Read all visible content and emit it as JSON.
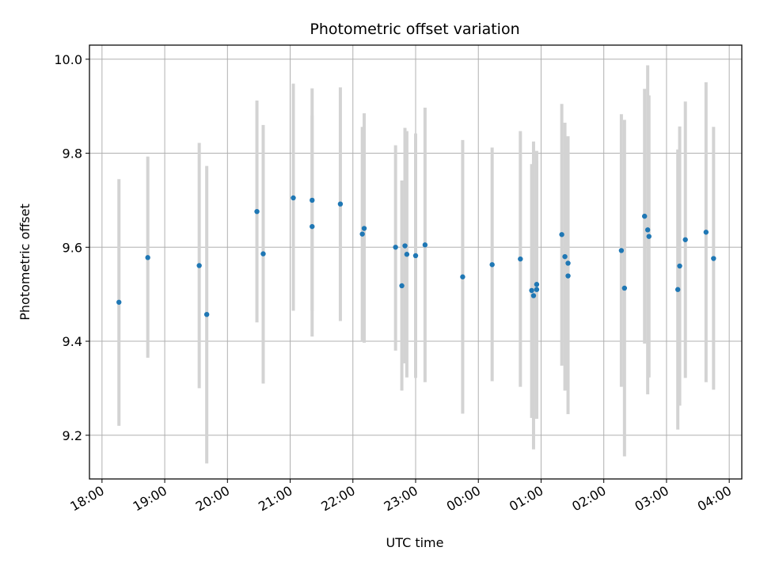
{
  "chart_data": {
    "type": "scatter",
    "title": "Photometric offset variation",
    "xlabel": "UTC time",
    "ylabel": "Photometric offset",
    "x_tick_labels": [
      "18:00",
      "19:00",
      "20:00",
      "21:00",
      "22:00",
      "23:00",
      "00:00",
      "01:00",
      "02:00",
      "03:00",
      "04:00"
    ],
    "x_ticks_hours": [
      0,
      1,
      2,
      3,
      4,
      5,
      6,
      7,
      8,
      9,
      10
    ],
    "xlim": [
      -0.2,
      10.2
    ],
    "y_ticks": [
      9.2,
      9.4,
      9.6,
      9.8,
      10.0
    ],
    "y_tick_labels": [
      "9.2",
      "9.4",
      "9.6",
      "9.8",
      "10.0"
    ],
    "ylim": [
      9.107,
      10.03
    ],
    "grid": true,
    "point_color": "#1f77b4",
    "errorbar_color": "#d3d3d3",
    "points": [
      {
        "x": 0.27,
        "y": 9.483,
        "lo": 9.22,
        "hi": 9.745
      },
      {
        "x": 0.73,
        "y": 9.578,
        "lo": 9.365,
        "hi": 9.793
      },
      {
        "x": 1.55,
        "y": 9.561,
        "lo": 9.3,
        "hi": 9.822
      },
      {
        "x": 1.67,
        "y": 9.457,
        "lo": 9.14,
        "hi": 9.773
      },
      {
        "x": 2.47,
        "y": 9.676,
        "lo": 9.44,
        "hi": 9.912
      },
      {
        "x": 2.57,
        "y": 9.586,
        "lo": 9.31,
        "hi": 9.86
      },
      {
        "x": 3.05,
        "y": 9.705,
        "lo": 9.465,
        "hi": 9.948
      },
      {
        "x": 3.35,
        "y": 9.7,
        "lo": 9.465,
        "hi": 9.938
      },
      {
        "x": 3.35,
        "y": 9.644,
        "lo": 9.41,
        "hi": 9.88
      },
      {
        "x": 3.8,
        "y": 9.692,
        "lo": 9.443,
        "hi": 9.94
      },
      {
        "x": 4.15,
        "y": 9.628,
        "lo": 9.4,
        "hi": 9.856
      },
      {
        "x": 4.18,
        "y": 9.64,
        "lo": 9.397,
        "hi": 9.885
      },
      {
        "x": 4.68,
        "y": 9.6,
        "lo": 9.38,
        "hi": 9.817
      },
      {
        "x": 4.78,
        "y": 9.518,
        "lo": 9.295,
        "hi": 9.742
      },
      {
        "x": 4.83,
        "y": 9.603,
        "lo": 9.353,
        "hi": 9.854
      },
      {
        "x": 4.86,
        "y": 9.585,
        "lo": 9.323,
        "hi": 9.847
      },
      {
        "x": 5.0,
        "y": 9.582,
        "lo": 9.322,
        "hi": 9.842
      },
      {
        "x": 5.15,
        "y": 9.605,
        "lo": 9.313,
        "hi": 9.897
      },
      {
        "x": 5.75,
        "y": 9.537,
        "lo": 9.246,
        "hi": 9.828
      },
      {
        "x": 6.22,
        "y": 9.563,
        "lo": 9.315,
        "hi": 9.812
      },
      {
        "x": 6.67,
        "y": 9.575,
        "lo": 9.303,
        "hi": 9.847
      },
      {
        "x": 6.85,
        "y": 9.508,
        "lo": 9.237,
        "hi": 9.777
      },
      {
        "x": 6.88,
        "y": 9.497,
        "lo": 9.17,
        "hi": 9.825
      },
      {
        "x": 6.93,
        "y": 9.521,
        "lo": 9.235,
        "hi": 9.805
      },
      {
        "x": 6.93,
        "y": 9.51,
        "lo": 9.235,
        "hi": 9.785
      },
      {
        "x": 7.33,
        "y": 9.627,
        "lo": 9.348,
        "hi": 9.905
      },
      {
        "x": 7.38,
        "y": 9.58,
        "lo": 9.295,
        "hi": 9.865
      },
      {
        "x": 7.43,
        "y": 9.566,
        "lo": 9.296,
        "hi": 9.836
      },
      {
        "x": 7.43,
        "y": 9.539,
        "lo": 9.245,
        "hi": 9.835
      },
      {
        "x": 8.28,
        "y": 9.593,
        "lo": 9.303,
        "hi": 9.883
      },
      {
        "x": 8.33,
        "y": 9.513,
        "lo": 9.155,
        "hi": 9.871
      },
      {
        "x": 8.65,
        "y": 9.666,
        "lo": 9.395,
        "hi": 9.937
      },
      {
        "x": 8.7,
        "y": 9.637,
        "lo": 9.287,
        "hi": 9.987
      },
      {
        "x": 8.72,
        "y": 9.623,
        "lo": 9.323,
        "hi": 9.923
      },
      {
        "x": 9.18,
        "y": 9.51,
        "lo": 9.212,
        "hi": 9.808
      },
      {
        "x": 9.21,
        "y": 9.56,
        "lo": 9.263,
        "hi": 9.857
      },
      {
        "x": 9.3,
        "y": 9.616,
        "lo": 9.322,
        "hi": 9.91
      },
      {
        "x": 9.63,
        "y": 9.632,
        "lo": 9.313,
        "hi": 9.951
      },
      {
        "x": 9.75,
        "y": 9.576,
        "lo": 9.297,
        "hi": 9.856
      }
    ]
  }
}
